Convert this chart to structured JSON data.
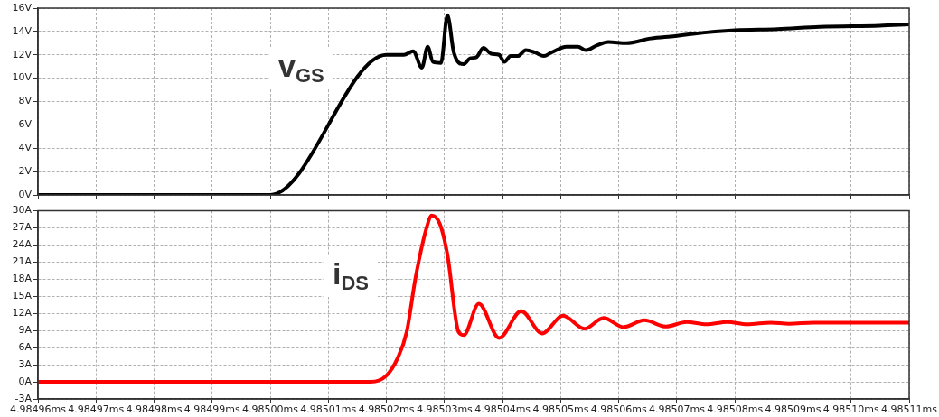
{
  "chart_data": [
    {
      "type": "line",
      "xlim": [
        4.98496,
        4.98511
      ],
      "ylim": [
        0,
        16
      ],
      "grid": true,
      "legend": false,
      "tick_labels": "y",
      "marker": "none",
      "line_style": "solid",
      "xticks": [
        {
          "value": 4.98496,
          "label": null
        },
        {
          "value": 4.98497,
          "label": null
        },
        {
          "value": 4.98498,
          "label": null
        },
        {
          "value": 4.98499,
          "label": null
        },
        {
          "value": 4.985,
          "label": null
        },
        {
          "value": 4.98501,
          "label": null
        },
        {
          "value": 4.98502,
          "label": null
        },
        {
          "value": 4.98503,
          "label": null
        },
        {
          "value": 4.98504,
          "label": null
        },
        {
          "value": 4.98505,
          "label": null
        },
        {
          "value": 4.98506,
          "label": null
        },
        {
          "value": 4.98507,
          "label": null
        },
        {
          "value": 4.98508,
          "label": null
        },
        {
          "value": 4.98509,
          "label": null
        },
        {
          "value": 4.9851,
          "label": null
        },
        {
          "value": 4.98511,
          "label": null
        }
      ],
      "yticks": [
        {
          "value": 0,
          "label": "0V"
        },
        {
          "value": 2,
          "label": "2V"
        },
        {
          "value": 4,
          "label": "4V"
        },
        {
          "value": 6,
          "label": "6V"
        },
        {
          "value": 8,
          "label": "8V"
        },
        {
          "value": 10,
          "label": "10V"
        },
        {
          "value": 12,
          "label": "12V"
        },
        {
          "value": 14,
          "label": "14V"
        },
        {
          "value": 16,
          "label": "16V"
        }
      ],
      "series": [
        {
          "name": "v$_{GS}$",
          "color": "#000000",
          "x": [
            4.98496,
            4.985,
            4.98502,
            4.985023,
            4.9850246,
            4.9850261,
            4.9850271,
            4.985028,
            4.9850294,
            4.9850305,
            4.9850316,
            4.9850333,
            4.9850344,
            4.9850355,
            4.9850367,
            4.985038,
            4.9850394,
            4.9850403,
            4.9850414,
            4.9850426,
            4.985044,
            4.9850456,
            4.9850471,
            4.9850484,
            4.985051,
            4.985053,
            4.9850543,
            4.9850562,
            4.9850582,
            4.9850613,
            4.9850655,
            4.9850697,
            4.9850728,
            4.98508,
            4.9850873,
            4.9850946,
            4.9851049,
            4.98511
          ],
          "values": [
            0,
            0,
            12,
            12,
            12.3,
            10.9,
            12.7,
            11.4,
            11.3,
            15.4,
            12.2,
            11.2,
            11.7,
            11.8,
            12.6,
            12.1,
            12,
            11.4,
            11.9,
            11.9,
            12.4,
            12.2,
            11.9,
            12.2,
            12.7,
            12.7,
            12.4,
            12.8,
            13.1,
            13,
            13.4,
            13.6,
            13.8,
            14.1,
            14.2,
            14.4,
            14.5,
            14.6
          ]
        }
      ]
    },
    {
      "type": "line",
      "xlim": [
        4.98496,
        4.98511
      ],
      "ylim": [
        -3,
        30
      ],
      "grid": true,
      "legend": false,
      "marker": "none",
      "line_style": "solid",
      "xticks": [
        {
          "value": 4.98496,
          "label": "4.98496ms"
        },
        {
          "value": 4.98497,
          "label": "4.98497ms"
        },
        {
          "value": 4.98498,
          "label": "4.98498ms"
        },
        {
          "value": 4.98499,
          "label": "4.98499ms"
        },
        {
          "value": 4.985,
          "label": "4.98500ms"
        },
        {
          "value": 4.98501,
          "label": "4.98501ms"
        },
        {
          "value": 4.98502,
          "label": "4.98502ms"
        },
        {
          "value": 4.98503,
          "label": "4.98503ms"
        },
        {
          "value": 4.98504,
          "label": "4.98504ms"
        },
        {
          "value": 4.98505,
          "label": "4.98505ms"
        },
        {
          "value": 4.98506,
          "label": "4.98506ms"
        },
        {
          "value": 4.98507,
          "label": "4.98507ms"
        },
        {
          "value": 4.98508,
          "label": "4.98508ms"
        },
        {
          "value": 4.98509,
          "label": "4.98509ms"
        },
        {
          "value": 4.9851,
          "label": "4.98510ms"
        },
        {
          "value": 4.98511,
          "label": "4.98511ms"
        }
      ],
      "yticks": [
        {
          "value": -3,
          "label": "-3A"
        },
        {
          "value": 0,
          "label": "0A"
        },
        {
          "value": 3,
          "label": "3A"
        },
        {
          "value": 6,
          "label": "6A"
        },
        {
          "value": 9,
          "label": "9A"
        },
        {
          "value": 12,
          "label": "12A"
        },
        {
          "value": 15,
          "label": "15A"
        },
        {
          "value": 18,
          "label": "18A"
        },
        {
          "value": 21,
          "label": "21A"
        },
        {
          "value": 24,
          "label": "24A"
        },
        {
          "value": 27,
          "label": "27A"
        },
        {
          "value": 30,
          "label": "30A"
        }
      ],
      "series": [
        {
          "name": "i$_{DS}$",
          "color": "#ff0000",
          "x": [
            4.98496,
            4.9850173,
            4.98502,
            4.9850219,
            4.9850235,
            4.985025,
            4.9850269,
            4.9850278,
            4.9850292,
            4.9850305,
            4.9850324,
            4.9850333,
            4.9850359,
            4.9850394,
            4.9850432,
            4.9850468,
            4.9850504,
            4.9850541,
            4.9850574,
            4.9850608,
            4.9850644,
            4.9850681,
            4.9850717,
            4.9850751,
            4.9850787,
            4.9850821,
            4.9850862,
            4.9850893,
            4.9850935,
            4.98511
          ],
          "values": [
            0,
            0,
            1.1,
            4.1,
            8.8,
            18.2,
            27,
            29.2,
            27.7,
            22.3,
            8.8,
            8.2,
            13.7,
            7.7,
            12.4,
            8.5,
            11.6,
            9.3,
            11.2,
            9.6,
            10.8,
            9.7,
            10.5,
            10.1,
            10.5,
            10.1,
            10.4,
            10.2,
            10.4,
            10.4
          ]
        }
      ]
    }
  ]
}
